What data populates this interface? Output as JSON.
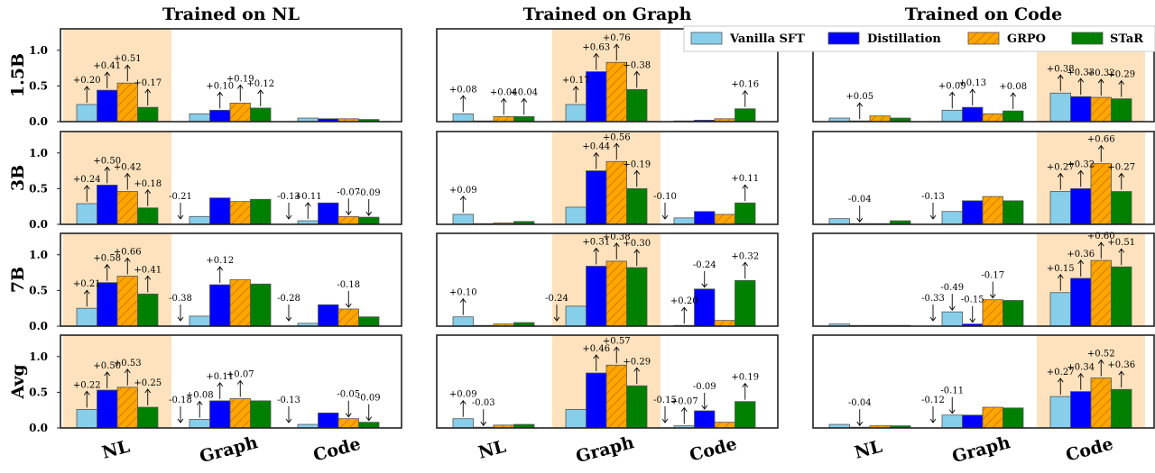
{
  "chart_data": {
    "type": "bar",
    "column_titles": [
      "Trained on NL",
      "Trained on Graph",
      "Trained on Code"
    ],
    "row_labels": [
      "1.5B",
      "3B",
      "7B",
      "Avg"
    ],
    "categories": [
      "NL",
      "Graph",
      "Code"
    ],
    "series_names": [
      "Vanilla SFT",
      "Distillation",
      "GRPO",
      "STaR"
    ],
    "colors": {
      "Vanilla SFT": "#87ceeb",
      "Distillation": "#0000ff",
      "GRPO": "#ffa500",
      "STaR": "#008000",
      "highlight": "#fde2bd"
    },
    "ylim": [
      0,
      1.3
    ],
    "yticks": [
      "0.0",
      "0.5",
      "1.0"
    ],
    "legend": {
      "placement": "top-right"
    },
    "panels": [
      [
        {
          "highlight": 0,
          "values": [
            [
              0.24,
              0.44,
              0.54,
              0.2
            ],
            [
              0.11,
              0.16,
              0.26,
              0.19
            ],
            [
              0.05,
              0.04,
              0.04,
              0.03
            ]
          ],
          "deltas": [
            [
              null,
              "+0.20",
              "+0.41",
              "+0.51",
              "+0.17"
            ],
            [
              null,
              null,
              "+0.10",
              "+0.19",
              "+0.12"
            ],
            [
              null,
              null,
              null,
              null,
              null
            ]
          ]
        },
        {
          "highlight": 1,
          "values": [
            [
              0.11,
              0.01,
              0.07,
              0.07
            ],
            [
              0.24,
              0.7,
              0.83,
              0.45
            ],
            [
              0.0,
              0.02,
              0.04,
              0.18
            ]
          ],
          "deltas": [
            [
              null,
              "+0.08",
              null,
              "+0.04",
              "+0.04"
            ],
            [
              null,
              "+0.17",
              "+0.63",
              "+0.76",
              "+0.38"
            ],
            [
              null,
              null,
              null,
              null,
              "+0.16"
            ]
          ]
        },
        {
          "highlight": 2,
          "values": [
            [
              0.05,
              0.0,
              0.08,
              0.05
            ],
            [
              0.16,
              0.2,
              0.11,
              0.15
            ],
            [
              0.4,
              0.35,
              0.34,
              0.32
            ]
          ],
          "deltas": [
            [
              null,
              null,
              "+0.05",
              null,
              null
            ],
            [
              null,
              "+0.09",
              "+0.13",
              null,
              "+0.08"
            ],
            [
              null,
              "+0.38",
              "+0.33",
              "+0.32",
              "+0.29"
            ]
          ]
        }
      ],
      [
        {
          "highlight": 0,
          "values": [
            [
              0.29,
              0.55,
              0.46,
              0.23
            ],
            [
              0.11,
              0.37,
              0.32,
              0.35
            ],
            [
              0.05,
              0.3,
              0.11,
              0.1
            ]
          ],
          "deltas": [
            [
              null,
              "+0.24",
              "+0.50",
              "+0.42",
              "+0.18"
            ],
            [
              "-0.21",
              null,
              null,
              null,
              null
            ],
            [
              "-0.13",
              "+0.11",
              null,
              "-0.07",
              "-0.09"
            ]
          ]
        },
        {
          "highlight": 1,
          "values": [
            [
              0.14,
              0.01,
              0.02,
              0.04
            ],
            [
              0.24,
              0.75,
              0.88,
              0.5
            ],
            [
              0.09,
              0.18,
              0.14,
              0.3
            ]
          ],
          "deltas": [
            [
              null,
              "+0.09",
              null,
              null,
              null
            ],
            [
              null,
              null,
              "+0.44",
              "+0.56",
              "+0.19"
            ],
            [
              "-0.10",
              null,
              null,
              null,
              "+0.11"
            ]
          ]
        },
        {
          "highlight": 2,
          "values": [
            [
              0.08,
              0.0,
              0.01,
              0.05
            ],
            [
              0.18,
              0.33,
              0.39,
              0.33
            ],
            [
              0.46,
              0.5,
              0.85,
              0.46
            ]
          ],
          "deltas": [
            [
              null,
              null,
              "-0.04",
              null,
              null
            ],
            [
              "-0.13",
              null,
              null,
              null,
              null
            ],
            [
              null,
              "+0.27",
              "+0.32",
              "+0.66",
              "+0.27"
            ]
          ]
        }
      ],
      [
        {
          "highlight": 0,
          "values": [
            [
              0.25,
              0.61,
              0.7,
              0.45
            ],
            [
              0.14,
              0.58,
              0.65,
              0.59
            ],
            [
              0.04,
              0.3,
              0.24,
              0.13
            ]
          ],
          "deltas": [
            [
              null,
              "+0.21",
              "+0.58",
              "+0.66",
              "+0.41"
            ],
            [
              "-0.38",
              null,
              "+0.12",
              null,
              null
            ],
            [
              "-0.28",
              null,
              null,
              "-0.18",
              null
            ]
          ]
        },
        {
          "highlight": 1,
          "values": [
            [
              0.13,
              0.01,
              0.03,
              0.05
            ],
            [
              0.28,
              0.84,
              0.91,
              0.82
            ],
            [
              0.0,
              0.52,
              0.08,
              0.64
            ]
          ],
          "deltas": [
            [
              null,
              "+0.10",
              null,
              null,
              null
            ],
            [
              "-0.24",
              null,
              "+0.31",
              "+0.38",
              "+0.30"
            ],
            [
              null,
              "+0.20",
              "-0.24",
              null,
              "+0.32"
            ]
          ]
        },
        {
          "highlight": 2,
          "values": [
            [
              0.03,
              0.0,
              0.01,
              0.01
            ],
            [
              0.2,
              0.03,
              0.37,
              0.36
            ],
            [
              0.47,
              0.67,
              0.92,
              0.83
            ]
          ],
          "deltas": [
            [
              null,
              null,
              null,
              null,
              null
            ],
            [
              "-0.33",
              "-0.49",
              "-0.15",
              "-0.17",
              null
            ],
            [
              null,
              "+0.15",
              "+0.36",
              "+0.60",
              "+0.51"
            ]
          ]
        }
      ],
      [
        {
          "highlight": 0,
          "values": [
            [
              0.26,
              0.53,
              0.57,
              0.29
            ],
            [
              0.12,
              0.38,
              0.41,
              0.38
            ],
            [
              0.05,
              0.21,
              0.13,
              0.08
            ]
          ],
          "deltas": [
            [
              null,
              "+0.22",
              "+0.50",
              "+0.53",
              "+0.25"
            ],
            [
              "-0.18",
              "+0.08",
              "+0.11",
              "+0.07",
              null
            ],
            [
              "-0.13",
              null,
              null,
              "-0.05",
              "-0.09"
            ]
          ]
        },
        {
          "highlight": 1,
          "values": [
            [
              0.13,
              0.01,
              0.04,
              0.05
            ],
            [
              0.26,
              0.77,
              0.88,
              0.59
            ],
            [
              0.03,
              0.24,
              0.08,
              0.37
            ]
          ],
          "deltas": [
            [
              null,
              "+0.09",
              "-0.03",
              null,
              null
            ],
            [
              null,
              null,
              "+0.46",
              "+0.57",
              "+0.29"
            ],
            [
              "-0.15",
              "+0.07",
              "-0.09",
              null,
              "+0.19"
            ]
          ]
        },
        {
          "highlight": 2,
          "values": [
            [
              0.05,
              0.0,
              0.03,
              0.03
            ],
            [
              0.18,
              0.18,
              0.29,
              0.28
            ],
            [
              0.44,
              0.51,
              0.7,
              0.54
            ]
          ],
          "deltas": [
            [
              null,
              null,
              "-0.04",
              null,
              null
            ],
            [
              "-0.12",
              "-0.11",
              null,
              null,
              null
            ],
            [
              null,
              "+0.27",
              "+0.34",
              "+0.52",
              "+0.36"
            ]
          ]
        }
      ]
    ]
  }
}
